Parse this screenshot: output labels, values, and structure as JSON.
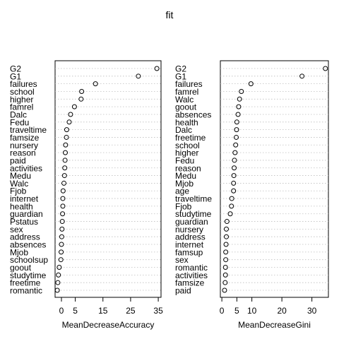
{
  "chart_data": {
    "title": "fit",
    "charts": [
      {
        "type": "scatter",
        "xlabel": "MeanDecreaseAccuracy",
        "xlim": [
          -2.3,
          36
        ],
        "xticks": [
          0,
          5,
          15,
          25,
          35
        ],
        "grid": true,
        "labels": [
          "G2",
          "G1",
          "failures",
          "school",
          "higher",
          "famrel",
          "Dalc",
          "Fedu",
          "traveltime",
          "famsize",
          "nursery",
          "reason",
          "paid",
          "activities",
          "Medu",
          "Walc",
          "Fjob",
          "internet",
          "health",
          "guardian",
          "Pstatus",
          "sex",
          "address",
          "absences",
          "Mjob",
          "schoolsup",
          "goout",
          "studytime",
          "freetime",
          "romantic"
        ],
        "values": [
          34.5,
          27.8,
          12.3,
          7.3,
          7.1,
          4.7,
          3.3,
          2.8,
          1.9,
          1.8,
          1.5,
          1.4,
          1.3,
          1.2,
          1.1,
          0.9,
          0.6,
          0.5,
          0.5,
          0.4,
          0.3,
          0.2,
          0.1,
          0.0,
          -0.1,
          -0.2,
          -0.8,
          -1.1,
          -1.3,
          -1.5
        ]
      },
      {
        "type": "scatter",
        "xlabel": "MeanDecreaseGini",
        "xlim": [
          -0.5,
          35.5
        ],
        "xticks": [
          0,
          5,
          10,
          20,
          30
        ],
        "grid": true,
        "labels": [
          "G2",
          "G1",
          "failures",
          "famrel",
          "Walc",
          "goout",
          "absences",
          "health",
          "Dalc",
          "freetime",
          "school",
          "higher",
          "Fedu",
          "reason",
          "Medu",
          "Mjob",
          "age",
          "traveltime",
          "Fjob",
          "studytime",
          "guardian",
          "nursery",
          "address",
          "internet",
          "famsup",
          "sex",
          "romantic",
          "activities",
          "famsize",
          "paid"
        ],
        "values": [
          34.5,
          26.7,
          9.7,
          6.5,
          5.9,
          5.6,
          5.4,
          5.0,
          4.9,
          4.8,
          4.6,
          4.4,
          4.2,
          4.1,
          4.0,
          3.9,
          3.9,
          3.3,
          3.2,
          2.8,
          1.7,
          1.5,
          1.5,
          1.4,
          1.3,
          1.3,
          1.2,
          1.2,
          1.1,
          0.9
        ]
      }
    ]
  }
}
